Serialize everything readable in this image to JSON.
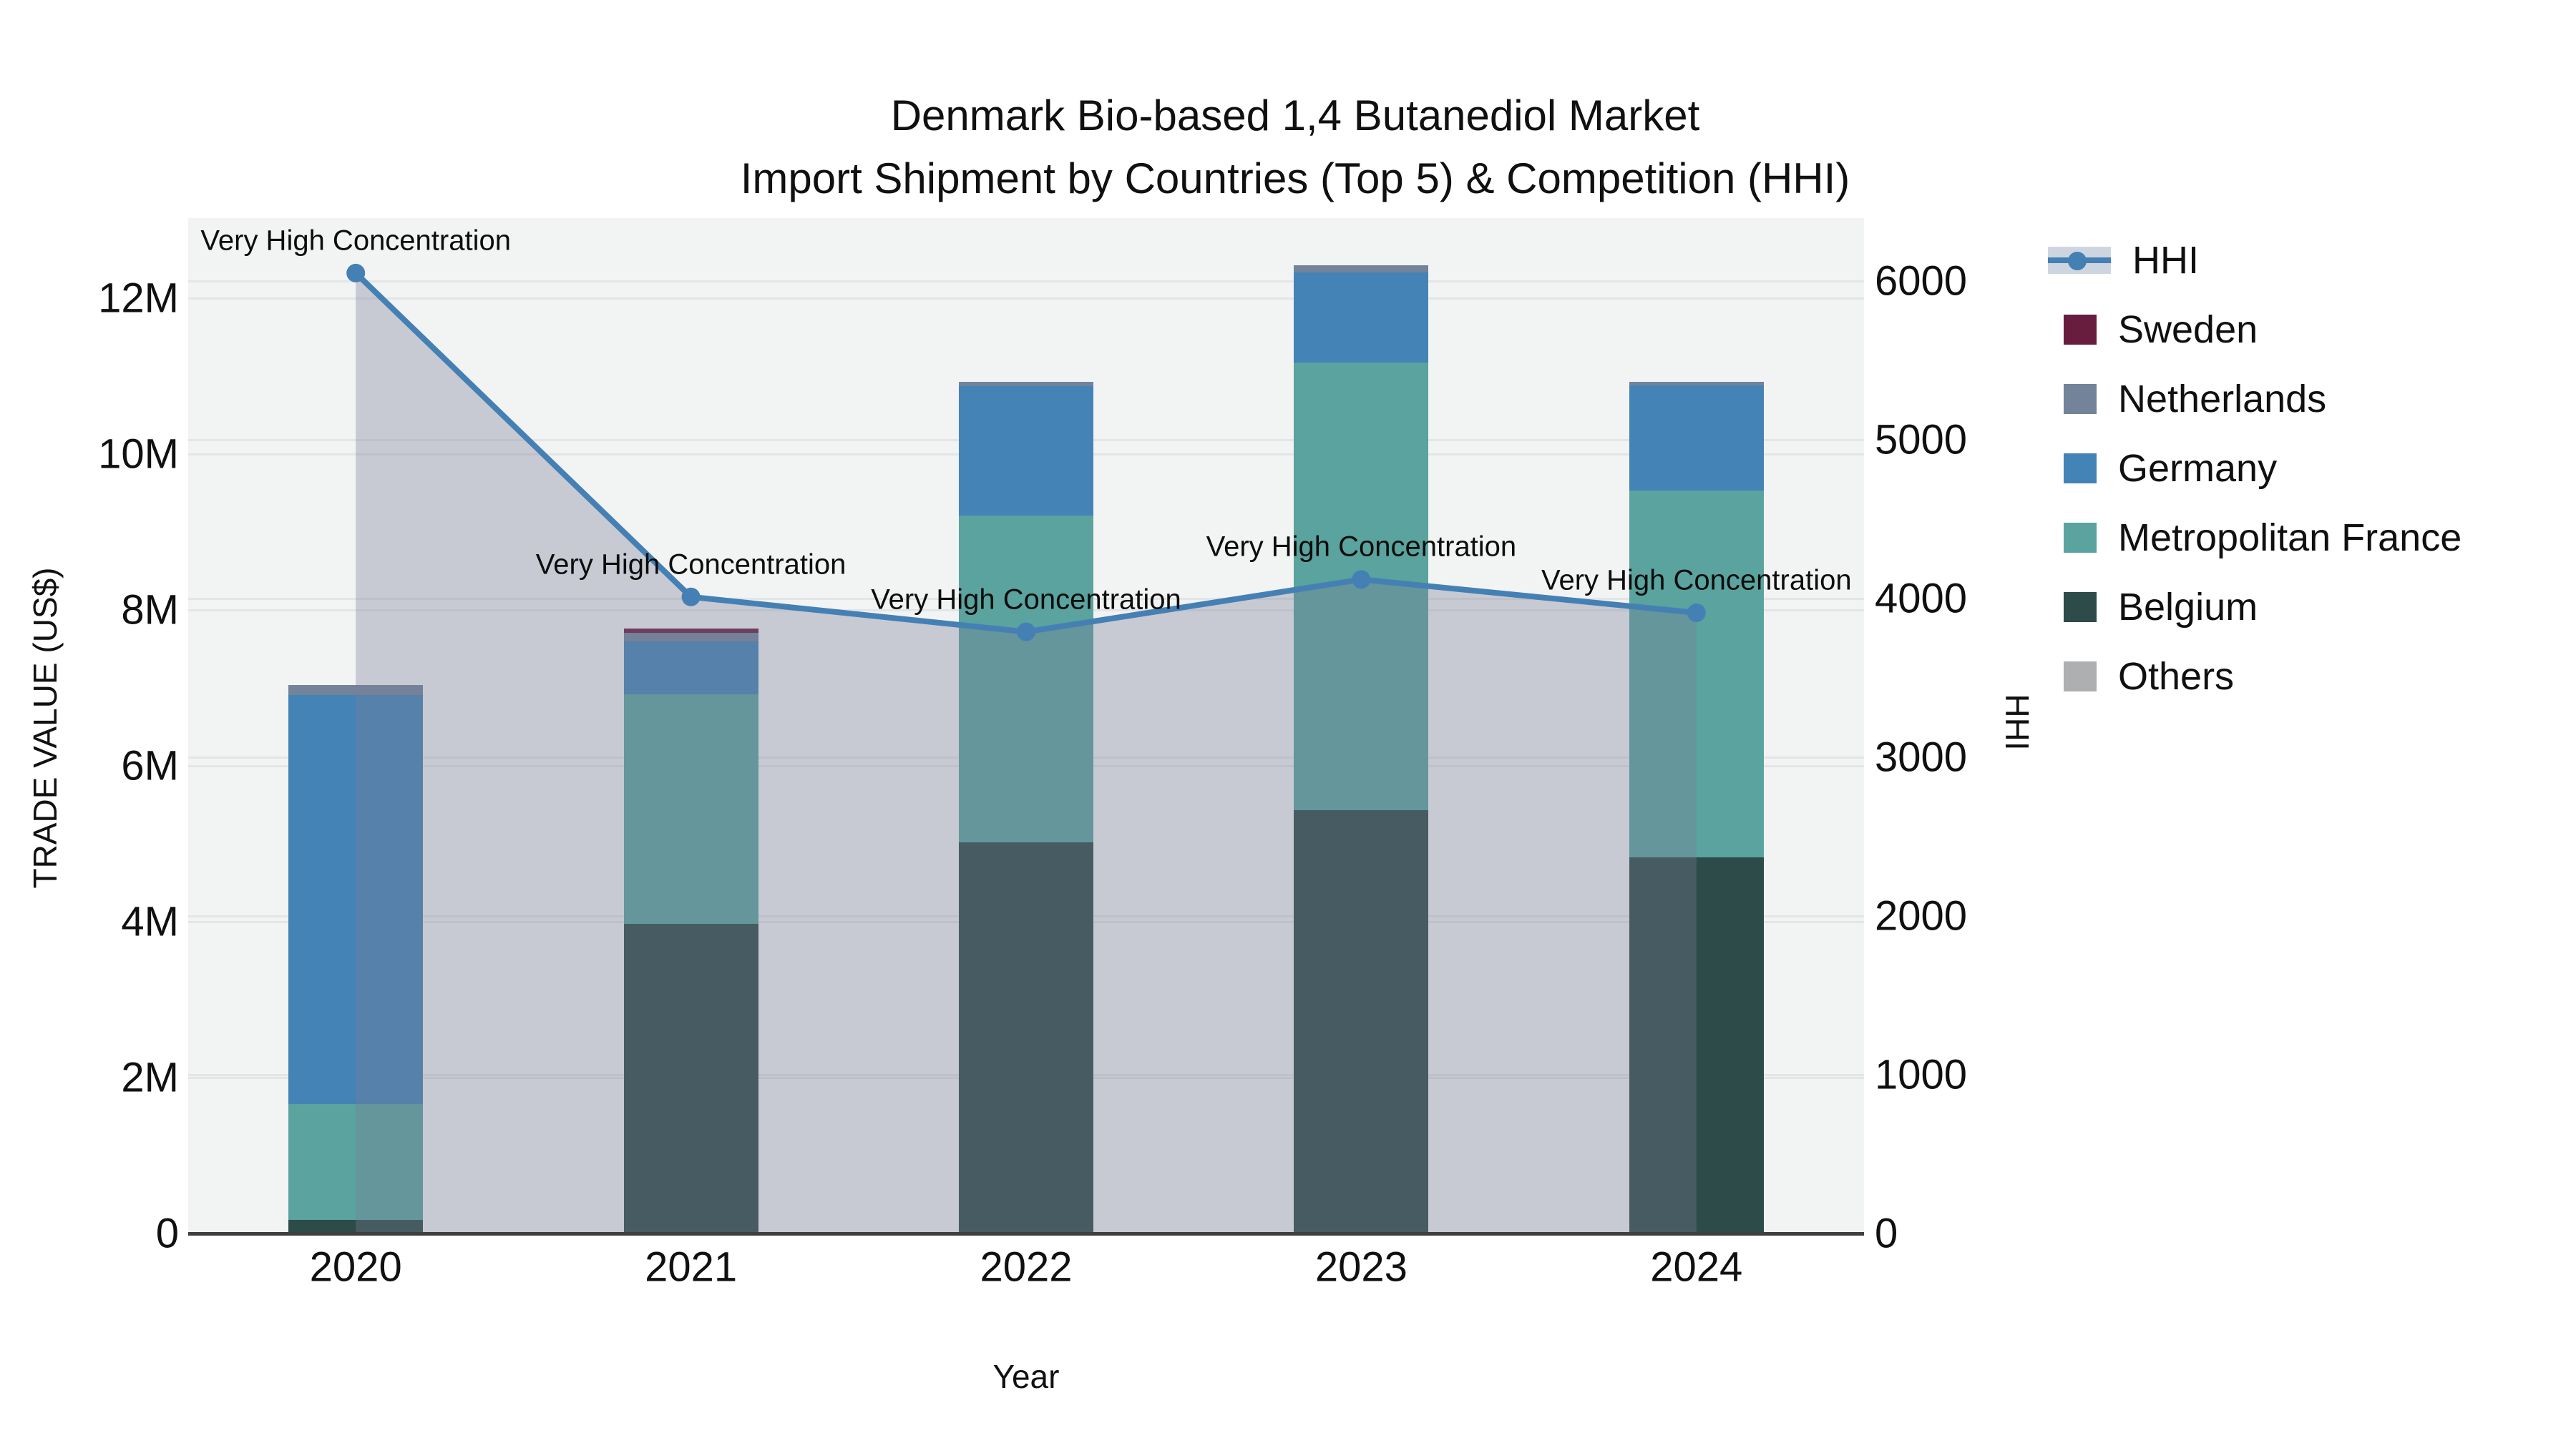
{
  "title": {
    "line1": "Denmark Bio-based 1,4 Butanediol Market",
    "line2": "Import Shipment by Countries (Top 5) & Competition (HHI)"
  },
  "axes": {
    "x": {
      "label": "Year",
      "tick_labels": [
        "2020",
        "2021",
        "2022",
        "2023",
        "2024"
      ]
    },
    "y_left": {
      "label": "TRADE VALUE (US$)",
      "tick_labels": [
        "0",
        "2M",
        "4M",
        "6M",
        "8M",
        "10M",
        "12M"
      ]
    },
    "y_right": {
      "label": "HHI",
      "tick_labels": [
        "0",
        "1000",
        "2000",
        "3000",
        "4000",
        "5000",
        "6000"
      ]
    }
  },
  "legend": {
    "entries": [
      {
        "label": "HHI",
        "type": "line",
        "color": "#4580b4"
      },
      {
        "label": "Sweden",
        "type": "box",
        "color": "#691d3e"
      },
      {
        "label": "Netherlands",
        "type": "box",
        "color": "#72839a"
      },
      {
        "label": "Germany",
        "type": "box",
        "color": "#4483b6"
      },
      {
        "label": "Metropolitan France",
        "type": "box",
        "color": "#5aa39e"
      },
      {
        "label": "Belgium",
        "type": "box",
        "color": "#2d4b48"
      },
      {
        "label": "Others",
        "type": "box",
        "color": "#adafb1"
      }
    ]
  },
  "chart_data": {
    "type": "bar+line",
    "title": "Denmark Bio-based 1,4 Butanediol Market Import Shipment by Countries (Top 5) & Competition (HHI)",
    "xlabel": "Year",
    "ylabel_left": "TRADE VALUE (US$)",
    "ylabel_right": "HHI",
    "categories": [
      "2020",
      "2021",
      "2022",
      "2023",
      "2024"
    ],
    "bar_unit": "million US$",
    "series": [
      {
        "name": "Belgium",
        "color": "#2d4b48",
        "values": [
          0.17,
          3.97,
          5.02,
          5.43,
          4.83
        ]
      },
      {
        "name": "Metropolitan France",
        "color": "#5aa39e",
        "values": [
          1.49,
          2.95,
          4.19,
          5.74,
          4.7
        ]
      },
      {
        "name": "Germany",
        "color": "#4483b6",
        "values": [
          5.25,
          0.68,
          1.66,
          1.16,
          1.35
        ]
      },
      {
        "name": "Netherlands",
        "color": "#72839a",
        "values": [
          0.13,
          0.11,
          0.06,
          0.09,
          0.05
        ]
      },
      {
        "name": "Sweden",
        "color": "#691d3e",
        "values": [
          0,
          0.05,
          0,
          0,
          0
        ]
      },
      {
        "name": "Others",
        "color": "#adafb1",
        "values": [
          0,
          0,
          0,
          0,
          0
        ]
      }
    ],
    "bar_totals_musd": [
      7.04,
      7.76,
      10.93,
      12.42,
      10.93
    ],
    "line_series": {
      "name": "HHI",
      "color": "#4580b4",
      "values": [
        6050,
        4010,
        3790,
        4120,
        3910
      ],
      "area_fill": "rgba(119,126,148,0.35)"
    },
    "annotations": [
      "Very High Concentration",
      "Very High Concentration",
      "Very High Concentration",
      "Very High Concentration",
      "Very High Concentration"
    ],
    "ylim_left_musd": [
      0,
      13.03
    ],
    "ylim_right_hhi": [
      0,
      6400
    ],
    "grid": true,
    "legend_position": "right"
  }
}
